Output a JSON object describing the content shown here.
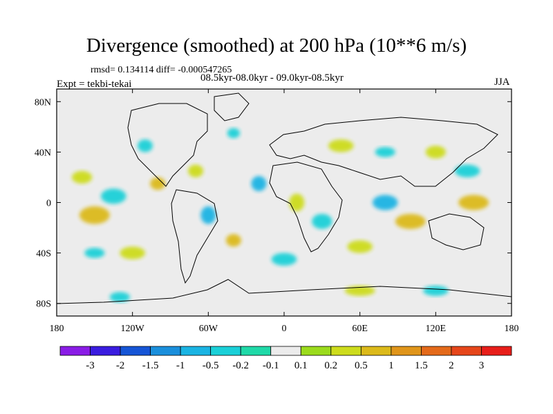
{
  "chart_data": {
    "type": "heatmap",
    "title": "Divergence (smoothed) at 200 hPa (10**6 m/s)",
    "stats_line": "rmsd= 0.134114 diff= -0.000547265",
    "period": "08.5kyr-08.0kyr - 09.0kyr-08.5kyr",
    "experiment": "Expt = tekbi-tekai",
    "season": "JJA",
    "x_ticks": [
      {
        "value": -180,
        "label": "180"
      },
      {
        "value": -120,
        "label": "120W"
      },
      {
        "value": -60,
        "label": "60W"
      },
      {
        "value": 0,
        "label": "0"
      },
      {
        "value": 60,
        "label": "60E"
      },
      {
        "value": 120,
        "label": "120E"
      },
      {
        "value": 180,
        "label": "180"
      }
    ],
    "y_ticks": [
      {
        "value": 80,
        "label": "80N"
      },
      {
        "value": 40,
        "label": "40N"
      },
      {
        "value": 0,
        "label": "0"
      },
      {
        "value": -40,
        "label": "40S"
      },
      {
        "value": -80,
        "label": "80S"
      }
    ],
    "xlim": [
      -180,
      180
    ],
    "ylim": [
      -90,
      90
    ],
    "colorbar": {
      "labels": [
        "-3",
        "-2",
        "-1.5",
        "-1",
        "-0.5",
        "-0.2",
        "-0.1",
        "0.1",
        "0.2",
        "0.5",
        "1",
        "1.5",
        "2",
        "3"
      ],
      "colors": [
        "#8a1ce6",
        "#3a1ce0",
        "#1555d6",
        "#1a8fdc",
        "#1ab4e3",
        "#1ad0d8",
        "#1fd9a8",
        "#ececec",
        "#9bdb1c",
        "#cddc1c",
        "#dcba1a",
        "#e0951a",
        "#e46a1a",
        "#e6461a",
        "#e81e1a"
      ]
    },
    "anomalies": [
      {
        "lon": -150,
        "lat": -10,
        "rx": 12,
        "ry": 7,
        "bin": 10
      },
      {
        "lon": -135,
        "lat": 5,
        "rx": 10,
        "ry": 6,
        "bin": 5
      },
      {
        "lon": -160,
        "lat": 20,
        "rx": 8,
        "ry": 5,
        "bin": 9
      },
      {
        "lon": -100,
        "lat": 15,
        "rx": 6,
        "ry": 5,
        "bin": 10
      },
      {
        "lon": -70,
        "lat": 25,
        "rx": 6,
        "ry": 5,
        "bin": 9
      },
      {
        "lon": -110,
        "lat": 45,
        "rx": 6,
        "ry": 5,
        "bin": 5
      },
      {
        "lon": -40,
        "lat": 55,
        "rx": 5,
        "ry": 4,
        "bin": 5
      },
      {
        "lon": -60,
        "lat": -10,
        "rx": 6,
        "ry": 7,
        "bin": 4
      },
      {
        "lon": -40,
        "lat": -30,
        "rx": 6,
        "ry": 5,
        "bin": 10
      },
      {
        "lon": -20,
        "lat": 15,
        "rx": 6,
        "ry": 6,
        "bin": 4
      },
      {
        "lon": 10,
        "lat": 0,
        "rx": 6,
        "ry": 7,
        "bin": 9
      },
      {
        "lon": 30,
        "lat": -15,
        "rx": 8,
        "ry": 6,
        "bin": 5
      },
      {
        "lon": 45,
        "lat": 45,
        "rx": 10,
        "ry": 5,
        "bin": 9
      },
      {
        "lon": 80,
        "lat": 40,
        "rx": 8,
        "ry": 4,
        "bin": 5
      },
      {
        "lon": 80,
        "lat": 0,
        "rx": 10,
        "ry": 6,
        "bin": 4
      },
      {
        "lon": 100,
        "lat": -15,
        "rx": 12,
        "ry": 6,
        "bin": 10
      },
      {
        "lon": 150,
        "lat": 0,
        "rx": 12,
        "ry": 6,
        "bin": 10
      },
      {
        "lon": 145,
        "lat": 25,
        "rx": 10,
        "ry": 5,
        "bin": 5
      },
      {
        "lon": 120,
        "lat": 40,
        "rx": 8,
        "ry": 5,
        "bin": 9
      },
      {
        "lon": -120,
        "lat": -40,
        "rx": 10,
        "ry": 5,
        "bin": 9
      },
      {
        "lon": -150,
        "lat": -40,
        "rx": 8,
        "ry": 4,
        "bin": 5
      },
      {
        "lon": 0,
        "lat": -45,
        "rx": 10,
        "ry": 5,
        "bin": 5
      },
      {
        "lon": 60,
        "lat": -35,
        "rx": 10,
        "ry": 5,
        "bin": 9
      },
      {
        "lon": -130,
        "lat": -75,
        "rx": 8,
        "ry": 4,
        "bin": 5
      },
      {
        "lon": 60,
        "lat": -70,
        "rx": 12,
        "ry": 4,
        "bin": 9
      },
      {
        "lon": 120,
        "lat": -70,
        "rx": 10,
        "ry": 4,
        "bin": 5
      }
    ]
  }
}
